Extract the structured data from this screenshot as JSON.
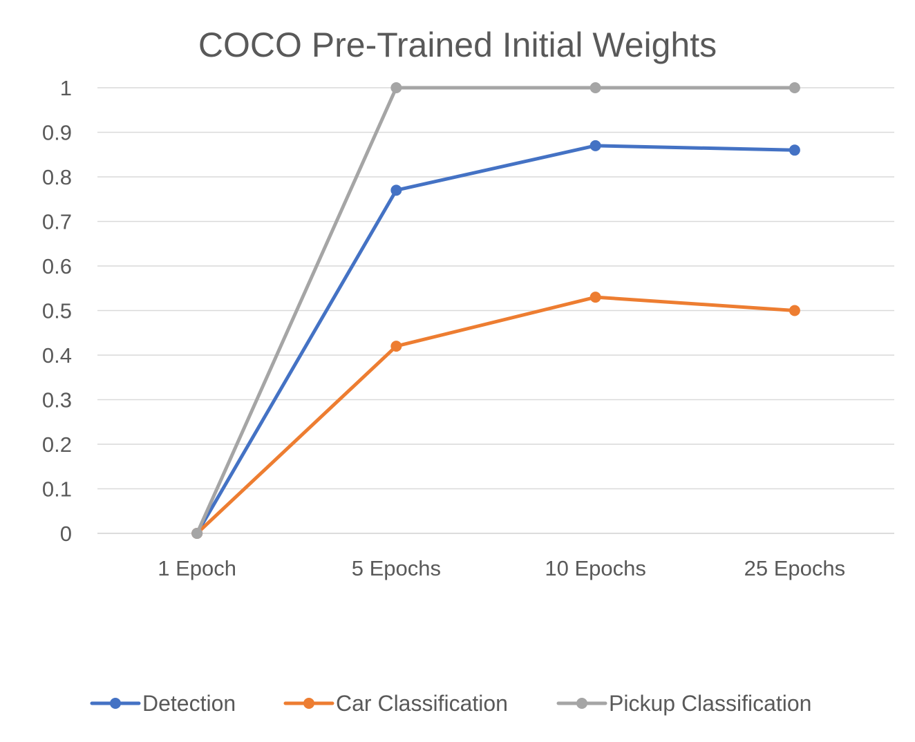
{
  "chart_data": {
    "type": "line",
    "title": "COCO Pre-Trained Initial Weights",
    "xlabel": "",
    "ylabel": "",
    "categories": [
      "1 Epoch",
      "5 Epochs",
      "10 Epochs",
      "25 Epochs"
    ],
    "ylim": [
      0,
      1
    ],
    "yticks": [
      "0",
      "0.1",
      "0.2",
      "0.3",
      "0.4",
      "0.5",
      "0.6",
      "0.7",
      "0.8",
      "0.9",
      "1"
    ],
    "grid": true,
    "legend_position": "bottom",
    "series": [
      {
        "name": "Detection",
        "color": "#4472c4",
        "values": [
          0,
          0.77,
          0.87,
          0.86
        ]
      },
      {
        "name": "Car Classification",
        "color": "#ed7d31",
        "values": [
          0,
          0.42,
          0.53,
          0.5
        ]
      },
      {
        "name": "Pickup Classification",
        "color": "#a5a5a5",
        "values": [
          0,
          1,
          1,
          1
        ]
      }
    ]
  }
}
